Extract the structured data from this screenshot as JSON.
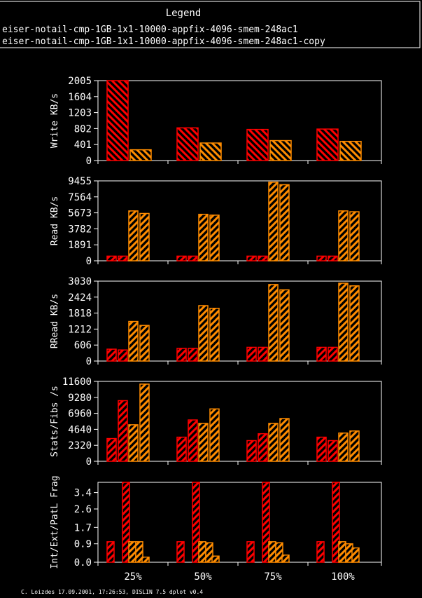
{
  "legend": {
    "title": "Legend",
    "entries": [
      {
        "label": "eiser-notail-cmp-1GB-1x1-10000-appfix-4096-smem-248ac1",
        "color": "#ff0000"
      },
      {
        "label": "eiser-notail-cmp-1GB-1x1-10000-appfix-4096-smem-248ac1-copy",
        "color": "#ff8c00"
      }
    ]
  },
  "footer": "C. Loizdes 17.09.2001, 17:26:53, DISLIN 7.5 dplot v0.4",
  "colors": {
    "red": "#ff0000",
    "orange": "#ff8c00",
    "axis": "#ffffff",
    "background": "#000000"
  },
  "chart_data": [
    {
      "type": "bar",
      "ylabel": "Write KB/s",
      "yticks": [
        "0",
        "401",
        "802",
        "1203",
        "1604",
        "2005"
      ],
      "ylim": [
        0,
        2005
      ],
      "categories": [
        "25%",
        "50%",
        "75%",
        "100%"
      ],
      "series": [
        {
          "values": [
            2005,
            820,
            780,
            790
          ]
        },
        {
          "values": [
            270,
            440,
            500,
            480
          ]
        }
      ]
    },
    {
      "type": "bar",
      "ylabel": "Read KB/s",
      "yticks": [
        "0",
        "1891",
        "3782",
        "5673",
        "7564",
        "9455"
      ],
      "ylim": [
        0,
        9455
      ],
      "categories": [
        "25%",
        "50%",
        "75%",
        "100%"
      ],
      "series": [
        {
          "values": [
            550,
            550,
            550,
            550
          ]
        },
        {
          "values": [
            550,
            550,
            550,
            550
          ]
        },
        {
          "values": [
            5900,
            5500,
            9300,
            5900
          ]
        },
        {
          "values": [
            5600,
            5400,
            9000,
            5800
          ]
        }
      ]
    },
    {
      "type": "bar",
      "ylabel": "RRead KB/s",
      "yticks": [
        "0",
        "606",
        "1212",
        "1818",
        "2424",
        "3030"
      ],
      "ylim": [
        0,
        3030
      ],
      "categories": [
        "25%",
        "50%",
        "75%",
        "100%"
      ],
      "series": [
        {
          "values": [
            450,
            480,
            520,
            520
          ]
        },
        {
          "values": [
            420,
            480,
            520,
            520
          ]
        },
        {
          "values": [
            1500,
            2100,
            2900,
            2950
          ]
        },
        {
          "values": [
            1350,
            2000,
            2700,
            2850
          ]
        }
      ]
    },
    {
      "type": "bar",
      "ylabel": "Stats/Fibs /s",
      "yticks": [
        "0",
        "2320",
        "4640",
        "6960",
        "9280",
        "11600"
      ],
      "ylim": [
        0,
        11600
      ],
      "categories": [
        "25%",
        "50%",
        "75%",
        "100%"
      ],
      "series": [
        {
          "values": [
            3300,
            3500,
            3000,
            3500
          ]
        },
        {
          "values": [
            8800,
            6000,
            4000,
            3000
          ]
        },
        {
          "values": [
            5300,
            5500,
            5500,
            4100
          ]
        },
        {
          "values": [
            11200,
            7600,
            6200,
            4400
          ]
        }
      ]
    },
    {
      "type": "bar",
      "ylabel": "Int/Ext/PatL Frag",
      "yticks": [
        "0.0",
        "0.9",
        "1.7",
        "2.6",
        "3.4"
      ],
      "ylim": [
        0,
        3.9
      ],
      "categories": [
        "25%",
        "50%",
        "75%",
        "100%"
      ],
      "series": [
        {
          "values": [
            1.0,
            1.0,
            1.0,
            1.0
          ]
        },
        {
          "values": [
            3.9,
            3.9,
            3.9,
            3.9
          ]
        },
        {
          "values": [
            1.0,
            1.0,
            1.0,
            1.0
          ]
        },
        {
          "values": [
            1.0,
            0.95,
            0.95,
            0.9
          ]
        },
        {
          "values": [
            0.25,
            0.3,
            0.35,
            0.7
          ]
        }
      ]
    }
  ]
}
